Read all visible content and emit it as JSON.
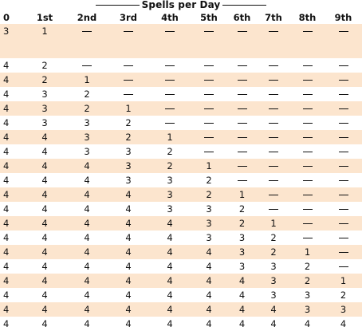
{
  "title": "Spells per Day",
  "columns": [
    "0",
    "1st",
    "2nd",
    "3rd",
    "4th",
    "5th",
    "6th",
    "7th",
    "8th",
    "9th"
  ],
  "dash": "—",
  "rows": [
    [
      "3",
      "1",
      "—",
      "—",
      "—",
      "—",
      "—",
      "—",
      "—",
      "—"
    ],
    [
      "4",
      "2",
      "—",
      "—",
      "—",
      "—",
      "—",
      "—",
      "—",
      "—"
    ],
    [
      "4",
      "2",
      "1",
      "—",
      "—",
      "—",
      "—",
      "—",
      "—",
      "—"
    ],
    [
      "4",
      "3",
      "2",
      "—",
      "—",
      "—",
      "—",
      "—",
      "—",
      "—"
    ],
    [
      "4",
      "3",
      "2",
      "1",
      "—",
      "—",
      "—",
      "—",
      "—",
      "—"
    ],
    [
      "4",
      "3",
      "3",
      "2",
      "—",
      "—",
      "—",
      "—",
      "—",
      "—"
    ],
    [
      "4",
      "4",
      "3",
      "2",
      "1",
      "—",
      "—",
      "—",
      "—",
      "—"
    ],
    [
      "4",
      "4",
      "3",
      "3",
      "2",
      "—",
      "—",
      "—",
      "—",
      "—"
    ],
    [
      "4",
      "4",
      "4",
      "3",
      "2",
      "1",
      "—",
      "—",
      "—",
      "—"
    ],
    [
      "4",
      "4",
      "4",
      "3",
      "3",
      "2",
      "—",
      "—",
      "—",
      "—"
    ],
    [
      "4",
      "4",
      "4",
      "4",
      "3",
      "2",
      "1",
      "—",
      "—",
      "—"
    ],
    [
      "4",
      "4",
      "4",
      "4",
      "3",
      "3",
      "2",
      "—",
      "—",
      "—"
    ],
    [
      "4",
      "4",
      "4",
      "4",
      "4",
      "3",
      "2",
      "1",
      "—",
      "—"
    ],
    [
      "4",
      "4",
      "4",
      "4",
      "4",
      "3",
      "3",
      "2",
      "—",
      "—"
    ],
    [
      "4",
      "4",
      "4",
      "4",
      "4",
      "4",
      "3",
      "2",
      "1",
      "—"
    ],
    [
      "4",
      "4",
      "4",
      "4",
      "4",
      "4",
      "3",
      "3",
      "2",
      "—"
    ],
    [
      "4",
      "4",
      "4",
      "4",
      "4",
      "4",
      "4",
      "3",
      "2",
      "1"
    ],
    [
      "4",
      "4",
      "4",
      "4",
      "4",
      "4",
      "4",
      "3",
      "3",
      "2"
    ],
    [
      "4",
      "4",
      "4",
      "4",
      "4",
      "4",
      "4",
      "4",
      "3",
      "3"
    ],
    [
      "4",
      "4",
      "4",
      "4",
      "4",
      "4",
      "4",
      "4",
      "4",
      "4"
    ]
  ],
  "colors": {
    "stripe": "#fce5ce",
    "text": "#111111"
  }
}
